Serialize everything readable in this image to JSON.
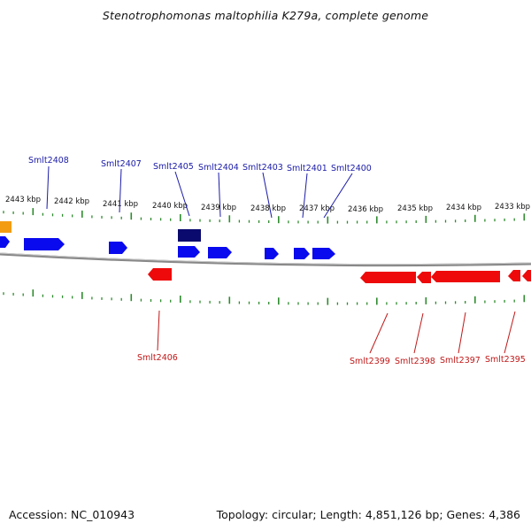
{
  "title": "Stenotrophomonas maltophilia K279a, complete genome",
  "footer": {
    "accession": "Accession: NC_010943",
    "summary": "Topology: circular; Length: 4,851,126 bp; Genes: 4,386"
  },
  "colors": {
    "forward_gene": "#0a0aee",
    "forward_gene_highlight": "#0a0a6e",
    "reverse_gene": "#ee0a0a",
    "other_feature": "#f39c12",
    "ticks": "#2e8b2e",
    "backbone": "#888888",
    "forward_label": "#1a1aa8",
    "reverse_label": "#c01818"
  },
  "kbp_labels": [
    "2443 kbp",
    "2442 kbp",
    "2441 kbp",
    "2440 kbp",
    "2439 kbp",
    "2438 kbp",
    "2437 kbp",
    "2436 kbp",
    "2435 kbp",
    "2434 kbp",
    "2433 kbp"
  ],
  "forward_gene_labels": [
    "Smlt2408",
    "Smlt2407",
    "Smlt2405",
    "Smlt2404",
    "Smlt2403",
    "Smlt2401",
    "Smlt2400"
  ],
  "reverse_gene_labels": [
    "Smlt2406",
    "Smlt2399",
    "Smlt2398",
    "Smlt2397",
    "Smlt2395"
  ]
}
